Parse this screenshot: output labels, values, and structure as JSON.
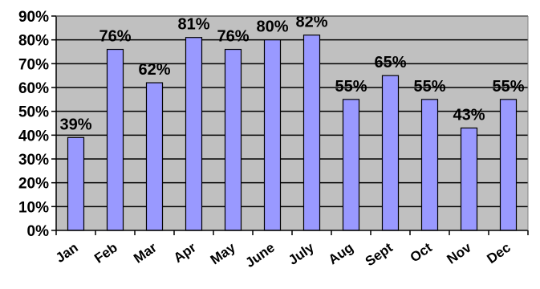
{
  "chart_data": {
    "type": "bar",
    "title": "",
    "xlabel": "",
    "ylabel": "",
    "categories": [
      "Jan",
      "Feb",
      "Mar",
      "Apr",
      "May",
      "June",
      "July",
      "Aug",
      "Sept",
      "Oct",
      "Nov",
      "Dec"
    ],
    "values": [
      39,
      76,
      62,
      81,
      76,
      80,
      82,
      55,
      65,
      55,
      43,
      55
    ],
    "data_labels": [
      "39%",
      "76%",
      "62%",
      "81%",
      "76%",
      "80%",
      "82%",
      "55%",
      "65%",
      "55%",
      "43%",
      "55%"
    ],
    "ylim": [
      0,
      90
    ],
    "yticks": [
      0,
      10,
      20,
      30,
      40,
      50,
      60,
      70,
      80,
      90
    ],
    "ytick_labels": [
      "0%",
      "10%",
      "20%",
      "30%",
      "40%",
      "50%",
      "60%",
      "70%",
      "80%",
      "90%"
    ],
    "grid": true,
    "legend": "none",
    "colors": {
      "plot_background": "#c0c0c0",
      "bar_fill": "#9999ff",
      "bar_stroke": "#000000",
      "gridline": "#000000"
    }
  }
}
